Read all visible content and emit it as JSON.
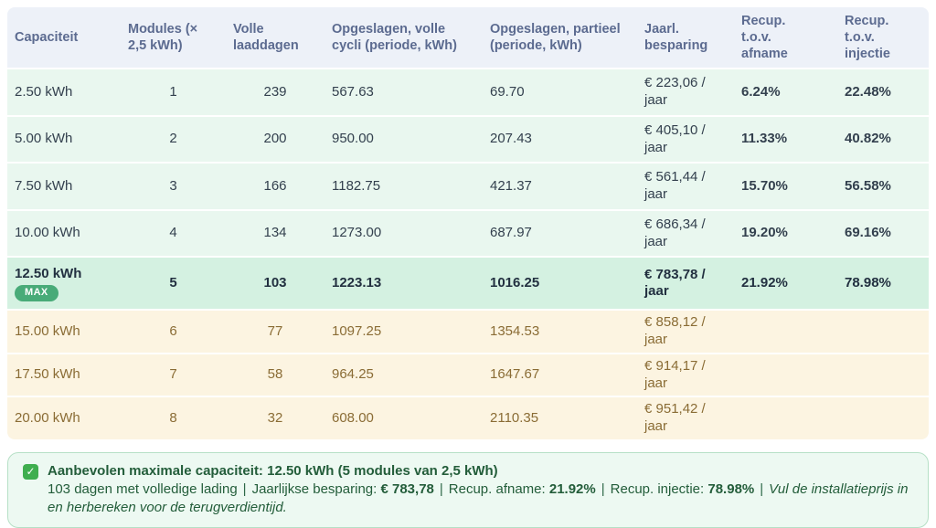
{
  "table": {
    "headers": [
      "Capaciteit",
      "Modules (×\n2,5 kWh)",
      "Volle\nlaaddagen",
      "Opgeslagen, volle\ncycli (periode, kWh)",
      "Opgeslagen, partieel\n(periode, kWh)",
      "Jaarl.\nbesparing",
      "Recup.\nt.o.v.\nafname",
      "Recup. t.o.v.\ninjectie"
    ],
    "rows": [
      {
        "capacity": "2.50 kWh",
        "modules": "1",
        "full_charge_days": "239",
        "stored_full": "567.63",
        "stored_partial": "69.70",
        "yearly_saving": "€ 223,06 /\njaar",
        "recup_afname": "6.24%",
        "recup_injectie": "22.48%"
      },
      {
        "capacity": "5.00 kWh",
        "modules": "2",
        "full_charge_days": "200",
        "stored_full": "950.00",
        "stored_partial": "207.43",
        "yearly_saving": "€ 405,10 /\njaar",
        "recup_afname": "11.33%",
        "recup_injectie": "40.82%"
      },
      {
        "capacity": "7.50 kWh",
        "modules": "3",
        "full_charge_days": "166",
        "stored_full": "1182.75",
        "stored_partial": "421.37",
        "yearly_saving": "€ 561,44 /\njaar",
        "recup_afname": "15.70%",
        "recup_injectie": "56.58%"
      },
      {
        "capacity": "10.00 kWh",
        "modules": "4",
        "full_charge_days": "134",
        "stored_full": "1273.00",
        "stored_partial": "687.97",
        "yearly_saving": "€ 686,34 /\njaar",
        "recup_afname": "19.20%",
        "recup_injectie": "69.16%"
      },
      {
        "capacity": "12.50 kWh",
        "badge": "MAX",
        "modules": "5",
        "full_charge_days": "103",
        "stored_full": "1223.13",
        "stored_partial": "1016.25",
        "yearly_saving": "€ 783,78 /\njaar",
        "recup_afname": "21.92%",
        "recup_injectie": "78.98%"
      },
      {
        "capacity": "15.00 kWh",
        "modules": "6",
        "full_charge_days": "77",
        "stored_full": "1097.25",
        "stored_partial": "1354.53",
        "yearly_saving": "€ 858,12 /\njaar",
        "recup_afname": "",
        "recup_injectie": ""
      },
      {
        "capacity": "17.50 kWh",
        "modules": "7",
        "full_charge_days": "58",
        "stored_full": "964.25",
        "stored_partial": "1647.67",
        "yearly_saving": "€ 914,17 /\njaar",
        "recup_afname": "",
        "recup_injectie": ""
      },
      {
        "capacity": "20.00 kWh",
        "modules": "8",
        "full_charge_days": "32",
        "stored_full": "608.00",
        "stored_partial": "2110.35",
        "yearly_saving": "€ 951,42 /\njaar",
        "recup_afname": "",
        "recup_injectie": ""
      }
    ]
  },
  "summary": {
    "check_icon": "✓",
    "title": "Aanbevolen maximale capaciteit: 12.50 kWh (5 modules van 2,5 kWh)",
    "days_text": "103 dagen met volledige lading",
    "separator": "|",
    "saving_label": "Jaarlijkse besparing:",
    "saving_value": "€ 783,78",
    "recup_afname_label": "Recup. afname:",
    "recup_afname_value": "21.92%",
    "recup_injectie_label": "Recup. injectie:",
    "recup_injectie_value": "78.98%",
    "note": "Vul de installatieprijs in en herbereken voor de terugverdientijd."
  },
  "colors": {
    "header_bg": "#edf1f8",
    "header_text": "#5c6b90",
    "ok_row_bg": "#e9f7ef",
    "max_row_bg": "#d4f1e1",
    "warn_row_bg": "#fcf4e1",
    "warn_text": "#8a6c35",
    "orange_value": "#f0a23b",
    "green_value": "#3aa66d",
    "blue_value": "#3b66d9",
    "badge_bg": "#48ab78",
    "callout_bg": "#edf9f2",
    "callout_border": "#b6e0c6",
    "callout_text": "#235d3a"
  }
}
